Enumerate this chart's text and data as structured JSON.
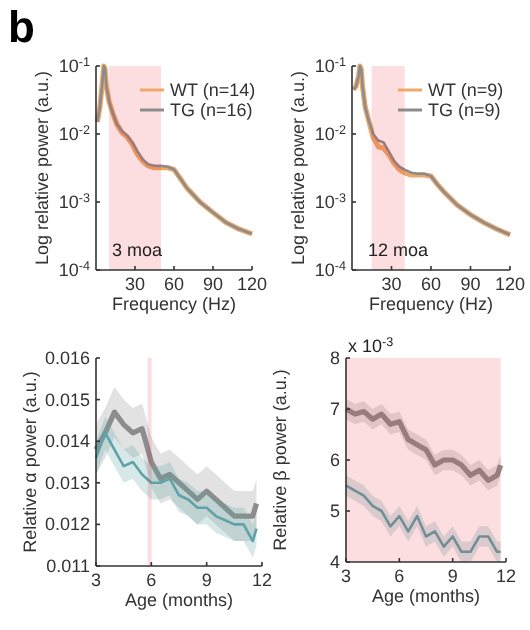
{
  "chart_data": [
    {
      "type": "line",
      "title": "b",
      "xlabel": "Frequency (Hz)",
      "ylabel": "Log relative power (a.u.)",
      "log": "y",
      "legend": "top right",
      "annotations": [
        "3 moa"
      ],
      "xlim": [
        0,
        120
      ],
      "xticks": [
        30,
        60,
        90,
        120
      ],
      "ylim": [
        0.0001,
        0.1
      ],
      "yticks": [
        {
          "value": 0.0001,
          "label": "10$^{-4}$"
        },
        {
          "value": 0.001,
          "label": "10$^{-3}$"
        },
        {
          "value": 0.01,
          "label": "10$^{-2}$"
        },
        {
          "value": 0.1,
          "label": "10$^{-1}$"
        }
      ],
      "x": [
        1,
        3,
        5,
        6,
        7,
        8,
        10,
        13,
        16,
        20,
        24,
        28,
        32,
        36,
        40,
        45,
        50,
        55,
        60,
        65,
        70,
        80,
        90,
        100,
        110,
        120
      ],
      "series": [
        {
          "name": "WT (n=14)",
          "color": "#f0a868",
          "values": [
            0.015,
            0.025,
            0.06,
            0.1,
            0.09,
            0.05,
            0.03,
            0.02,
            0.014,
            0.0105,
            0.009,
            0.007,
            0.005,
            0.004,
            0.0034,
            0.0032,
            0.0032,
            0.0032,
            0.003,
            0.0022,
            0.0016,
            0.001,
            0.0007,
            0.0005,
            0.0004,
            0.00034
          ]
        },
        {
          "name": "TG (n=16)",
          "color": "#8c8c8c",
          "values": [
            0.015,
            0.025,
            0.06,
            0.1,
            0.09,
            0.05,
            0.03,
            0.02,
            0.014,
            0.011,
            0.0095,
            0.0075,
            0.0055,
            0.0042,
            0.0036,
            0.0034,
            0.0034,
            0.0033,
            0.003,
            0.0022,
            0.0016,
            0.001,
            0.0007,
            0.0005,
            0.0004,
            0.00034
          ]
        }
      ],
      "bands": [
        {
          "axis": "x",
          "from": 10,
          "to": 50,
          "color": "#e8242c"
        }
      ]
    },
    {
      "type": "line",
      "xlabel": "Frequency (Hz)",
      "ylabel": "Log relative power (a.u.)",
      "log": "y",
      "legend": "top right",
      "annotations": [
        "12 moa"
      ],
      "xlim": [
        0,
        120
      ],
      "xticks": [
        30,
        60,
        90,
        120
      ],
      "ylim": [
        0.0001,
        0.1
      ],
      "yticks": [
        {
          "value": 0.0001,
          "label": "10$^{-4}$"
        },
        {
          "value": 0.001,
          "label": "10$^{-3}$"
        },
        {
          "value": 0.01,
          "label": "10$^{-2}$"
        },
        {
          "value": 0.1,
          "label": "10$^{-1}$"
        }
      ],
      "x": [
        1,
        3,
        5,
        6,
        7,
        8,
        10,
        13,
        16,
        20,
        24,
        28,
        32,
        36,
        40,
        45,
        50,
        55,
        60,
        65,
        70,
        80,
        90,
        100,
        110,
        120
      ],
      "series": [
        {
          "name": "WT (n=9)",
          "color": "#f0a868",
          "values": [
            0.045,
            0.05,
            0.07,
            0.1,
            0.09,
            0.05,
            0.025,
            0.015,
            0.009,
            0.0065,
            0.0062,
            0.005,
            0.0037,
            0.003,
            0.0027,
            0.0025,
            0.0025,
            0.0025,
            0.0024,
            0.0018,
            0.0014,
            0.0009,
            0.00065,
            0.0005,
            0.0004,
            0.00033
          ]
        },
        {
          "name": "TG (n=9)",
          "color": "#8c8c8c",
          "values": [
            0.045,
            0.05,
            0.07,
            0.1,
            0.09,
            0.05,
            0.025,
            0.015,
            0.01,
            0.008,
            0.0075,
            0.0055,
            0.004,
            0.0033,
            0.003,
            0.0027,
            0.0026,
            0.0026,
            0.0024,
            0.0018,
            0.0014,
            0.0009,
            0.00065,
            0.0005,
            0.0004,
            0.00033
          ]
        }
      ],
      "bands": [
        {
          "axis": "x",
          "from": 15,
          "to": 40,
          "color": "#e8242c"
        }
      ]
    },
    {
      "type": "line",
      "xlabel": "Age (months)",
      "ylabel": "Relative α power (a.u.)",
      "xlim": [
        3,
        12
      ],
      "xticks": [
        3,
        6,
        9,
        12
      ],
      "ylim": [
        0.011,
        0.016
      ],
      "yticks": [
        {
          "value": 0.011,
          "label": "0.011"
        },
        {
          "value": 0.012,
          "label": "0.012"
        },
        {
          "value": 0.013,
          "label": "0.013"
        },
        {
          "value": 0.014,
          "label": "0.014"
        },
        {
          "value": 0.015,
          "label": "0.015"
        },
        {
          "value": 0.016,
          "label": "0.016"
        }
      ],
      "x": [
        3,
        3.5,
        4,
        4.5,
        5,
        5.5,
        6,
        6.5,
        7,
        7.5,
        8,
        8.5,
        9,
        9.5,
        10,
        10.5,
        11,
        11.5,
        11.7
      ],
      "series": [
        {
          "color": "#8c8c8c",
          "values": [
            0.0138,
            0.0142,
            0.0147,
            0.0144,
            0.0142,
            0.0143,
            0.0135,
            0.0131,
            0.0132,
            0.013,
            0.0128,
            0.0126,
            0.0128,
            0.0126,
            0.0124,
            0.0122,
            0.0122,
            0.0122,
            0.0125
          ],
          "lower": [
            0.0132,
            0.0136,
            0.0141,
            0.0138,
            0.0136,
            0.0137,
            0.0129,
            0.0125,
            0.0126,
            0.0124,
            0.0122,
            0.012,
            0.0122,
            0.012,
            0.0118,
            0.0116,
            0.0116,
            0.0116,
            0.0119
          ],
          "upper": [
            0.0144,
            0.0148,
            0.0153,
            0.015,
            0.0148,
            0.0149,
            0.0141,
            0.0137,
            0.0138,
            0.0136,
            0.0134,
            0.0132,
            0.0134,
            0.0132,
            0.013,
            0.0128,
            0.0128,
            0.0128,
            0.0131
          ]
        },
        {
          "color": "#5fa3a8",
          "values": [
            0.0136,
            0.0142,
            0.0138,
            0.0134,
            0.0135,
            0.0132,
            0.013,
            0.013,
            0.0131,
            0.0127,
            0.0126,
            0.0124,
            0.0124,
            0.0122,
            0.0121,
            0.012,
            0.012,
            0.0116,
            0.0119
          ],
          "lower": [
            0.0132,
            0.0138,
            0.0134,
            0.013,
            0.0131,
            0.0128,
            0.0126,
            0.0126,
            0.0127,
            0.0123,
            0.0122,
            0.012,
            0.012,
            0.0118,
            0.0117,
            0.0116,
            0.0116,
            0.0112,
            0.0115
          ],
          "upper": [
            0.014,
            0.0146,
            0.0142,
            0.0138,
            0.0139,
            0.0136,
            0.0134,
            0.0134,
            0.0135,
            0.0131,
            0.013,
            0.0128,
            0.0128,
            0.0126,
            0.0125,
            0.0124,
            0.0124,
            0.012,
            0.0123
          ]
        }
      ],
      "bands": [
        {
          "axis": "x",
          "from": 5.8,
          "to": 6.0,
          "color": "#e8242c"
        }
      ]
    },
    {
      "type": "line",
      "xlabel": "Age (months)",
      "ylabel": "Relative β power (a.u.)",
      "annotations": [
        "x 10$^{-3}$"
      ],
      "xlim": [
        3,
        12
      ],
      "xticks": [
        3,
        6,
        9,
        12
      ],
      "ylim": [
        4,
        8
      ],
      "yticks": [
        4,
        5,
        6,
        7,
        8
      ],
      "x": [
        3,
        3.5,
        4,
        4.5,
        5,
        5.5,
        6,
        6.5,
        7,
        7.5,
        8,
        8.5,
        9,
        9.5,
        10,
        10.5,
        11,
        11.5,
        11.7
      ],
      "series": [
        {
          "color": "#8c8c8c",
          "values": [
            7.0,
            6.9,
            6.95,
            6.8,
            6.9,
            6.7,
            6.75,
            6.4,
            6.3,
            6.2,
            5.9,
            6.0,
            6.0,
            5.9,
            5.7,
            5.8,
            5.6,
            5.7,
            5.9
          ],
          "lower": [
            6.8,
            6.7,
            6.75,
            6.6,
            6.7,
            6.5,
            6.55,
            6.2,
            6.1,
            6.0,
            5.7,
            5.8,
            5.8,
            5.7,
            5.5,
            5.6,
            5.4,
            5.5,
            5.7
          ],
          "upper": [
            7.2,
            7.1,
            7.15,
            7.0,
            7.1,
            6.9,
            6.95,
            6.6,
            6.5,
            6.4,
            6.1,
            6.2,
            6.2,
            6.1,
            5.9,
            6.0,
            5.8,
            5.9,
            6.1
          ]
        },
        {
          "color": "#5fa3a8",
          "values": [
            5.5,
            5.4,
            5.3,
            5.1,
            5.0,
            4.7,
            4.9,
            4.6,
            4.9,
            4.5,
            4.6,
            4.3,
            4.5,
            4.2,
            4.2,
            4.5,
            4.5,
            4.2,
            4.2
          ],
          "lower": [
            5.3,
            5.2,
            5.1,
            4.9,
            4.8,
            4.5,
            4.7,
            4.4,
            4.7,
            4.3,
            4.4,
            4.1,
            4.3,
            4.0,
            4.0,
            4.3,
            4.3,
            4.0,
            4.0
          ],
          "upper": [
            5.7,
            5.6,
            5.5,
            5.3,
            5.2,
            4.9,
            5.1,
            4.8,
            5.1,
            4.7,
            4.8,
            4.5,
            4.7,
            4.4,
            4.4,
            4.7,
            4.7,
            4.4,
            4.4
          ]
        }
      ],
      "bands": [
        {
          "axis": "x",
          "from": 3,
          "to": 11.7,
          "color": "#e8242c"
        }
      ]
    }
  ]
}
